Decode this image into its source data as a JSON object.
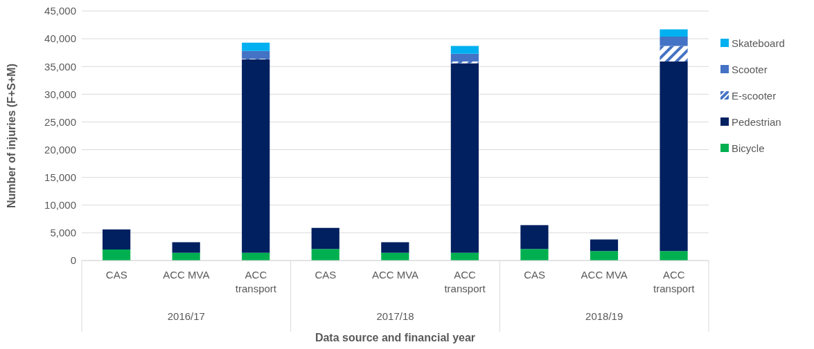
{
  "chart_data": {
    "type": "bar",
    "stacked": true,
    "xlabel": "Data source and financial year",
    "ylabel": "Number of injuries (F+S+M)",
    "categories": [
      "CAS",
      "ACC MVA",
      "ACC transport",
      "CAS",
      "ACC MVA",
      "ACC transport",
      "CAS",
      "ACC MVA",
      "ACC transport"
    ],
    "annotations": [
      "2016/17",
      "2017/18",
      "2018/19"
    ],
    "series": [
      {
        "name": "Bicycle",
        "color": "#00b050",
        "values": [
          2000,
          1400,
          1400,
          2100,
          1400,
          1400,
          2100,
          1700,
          1700
        ]
      },
      {
        "name": "Pedestrian",
        "color": "#002060",
        "values": [
          3600,
          1900,
          34900,
          3800,
          1900,
          34200,
          4300,
          2100,
          34200
        ]
      },
      {
        "name": "E-scooter",
        "color": "#4472c4",
        "values": [
          0,
          0,
          100,
          0,
          0,
          300,
          0,
          0,
          2800
        ]
      },
      {
        "name": "Scooter",
        "color": "#4472c4",
        "values": [
          0,
          0,
          1400,
          0,
          0,
          1400,
          0,
          0,
          1700
        ]
      },
      {
        "name": "Skateboard",
        "color": "#00b0f0",
        "values": [
          0,
          0,
          1500,
          0,
          0,
          1400,
          0,
          0,
          1300
        ]
      }
    ],
    "ylim": [
      0,
      45000
    ],
    "yticks": [
      0,
      {
        "value": 5000,
        "label": "5,000"
      },
      {
        "value": 10000,
        "label": "10,000"
      },
      {
        "value": 15000,
        "label": "15,000"
      },
      {
        "value": 20000,
        "label": "20,000"
      },
      {
        "value": 25000,
        "label": "25,000"
      },
      {
        "value": 30000,
        "label": "30,000"
      },
      {
        "value": 35000,
        "label": "35,000"
      },
      {
        "value": 40000,
        "label": "40,000"
      },
      {
        "value": 45000,
        "label": "45,000"
      }
    ],
    "grid": "y",
    "legend": "right"
  }
}
